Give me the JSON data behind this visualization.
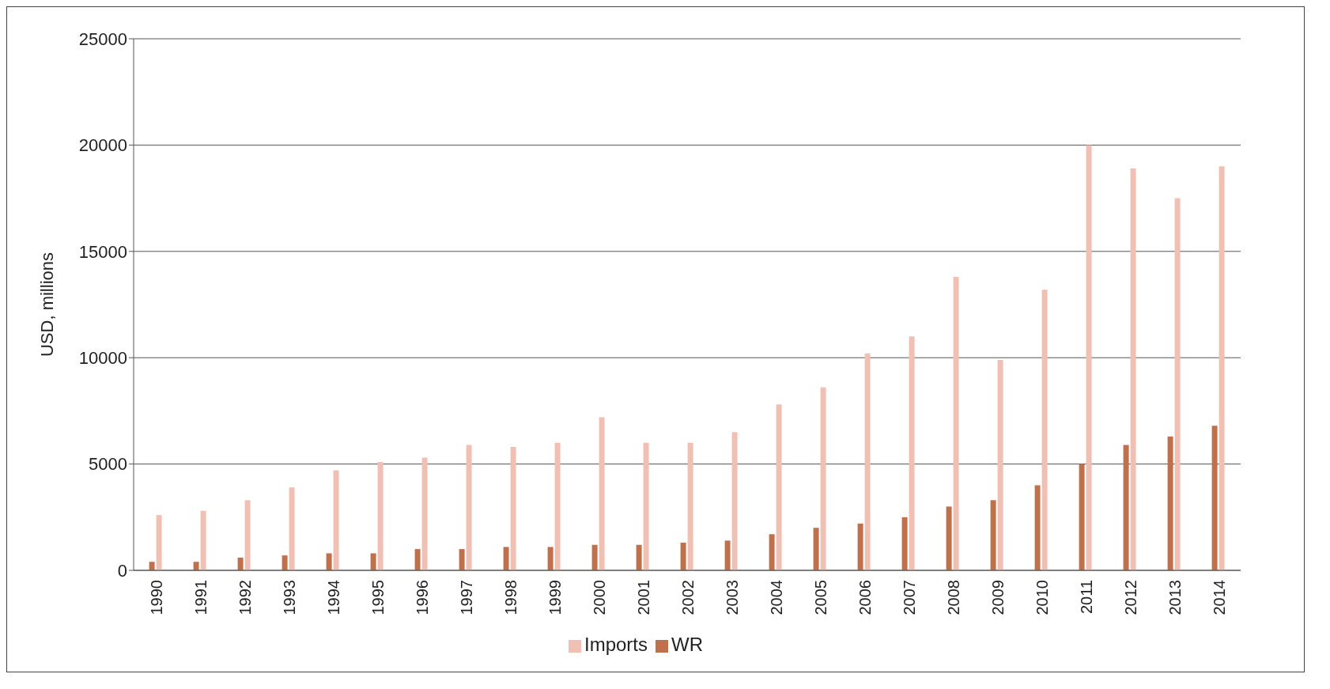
{
  "chart_data": {
    "type": "bar",
    "ylabel": "USD, millions",
    "categories": [
      "1990",
      "1991",
      "1992",
      "1993",
      "1994",
      "1995",
      "1996",
      "1997",
      "1998",
      "1999",
      "2000",
      "2001",
      "2002",
      "2003",
      "2004",
      "2005",
      "2006",
      "2007",
      "2008",
      "2009",
      "2010",
      "2011",
      "2012",
      "2013",
      "2014"
    ],
    "series": [
      {
        "name": "WR",
        "color": "#c0704a",
        "values": [
          400,
          400,
          600,
          700,
          800,
          800,
          1000,
          1000,
          1100,
          1100,
          1200,
          1200,
          1300,
          1400,
          1700,
          2000,
          2200,
          2500,
          3000,
          3300,
          4000,
          5000,
          5900,
          6300,
          6800
        ]
      },
      {
        "name": "Imports",
        "color": "#f0c0b4",
        "values": [
          2600,
          2800,
          3300,
          3900,
          4700,
          5100,
          5300,
          5900,
          5800,
          6000,
          7200,
          6000,
          6000,
          6500,
          7800,
          8600,
          10200,
          11000,
          13800,
          9900,
          13200,
          20000,
          18900,
          17500,
          19000
        ]
      }
    ],
    "ylim": [
      0,
      25000
    ],
    "yticks": [
      0,
      5000,
      10000,
      15000,
      20000,
      25000
    ],
    "grid": "y",
    "legend": "bottom"
  }
}
